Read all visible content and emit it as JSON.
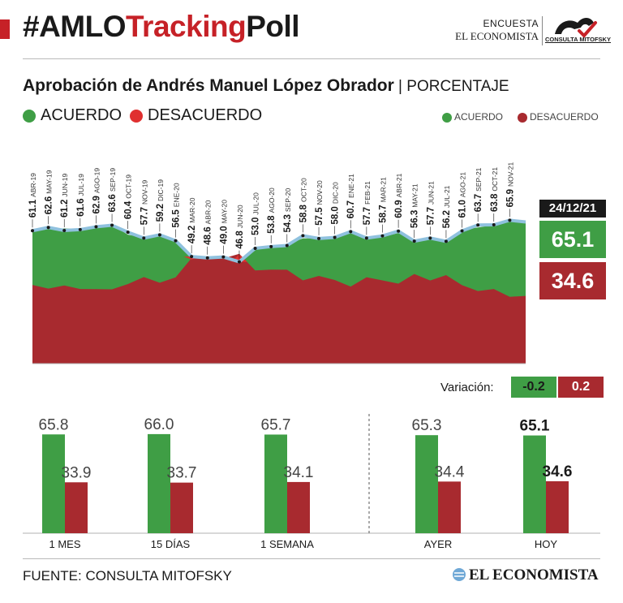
{
  "header": {
    "title_part1": "#AMLO",
    "title_part2": "Tracking",
    "title_part3": "Poll",
    "encuesta": "ENCUESTA",
    "publisher": "EL ECONOMISTA",
    "partner_logo_text": "CONSULTA MITOFSKY"
  },
  "subtitle": {
    "main": "Aprobación de Andrés Manuel López Obrador",
    "unit": "PORCENTAJE"
  },
  "legend": {
    "acuerdo": "ACUERDO",
    "desacuerdo": "DESACUERDO"
  },
  "colors": {
    "acuerdo": "#3f9e45",
    "desacuerdo": "#a82a2f",
    "desacuerdo_bright": "#e03030",
    "line": "#8fc1de"
  },
  "current": {
    "date": "24/12/21",
    "acuerdo": "65.1",
    "desacuerdo": "34.6"
  },
  "variation": {
    "label": "Variación:",
    "acuerdo": "-0.2",
    "desacuerdo": "0.2"
  },
  "chart_data": [
    {
      "type": "area",
      "title": "Aprobación de Andrés Manuel López Obrador",
      "ylabel": "PORCENTAJE",
      "ylim": [
        0,
        100
      ],
      "grid": false,
      "legend": "top-right",
      "points": [
        {
          "value": 61.1,
          "label": "ABR-19"
        },
        {
          "value": 62.6,
          "label": "MAY-19"
        },
        {
          "value": 61.2,
          "label": "JUN-19"
        },
        {
          "value": 61.6,
          "label": "JUL-19"
        },
        {
          "value": 62.9,
          "label": "AGO-19"
        },
        {
          "value": 63.6,
          "label": "SEP-19"
        },
        {
          "value": 60.4,
          "label": "OCT-19"
        },
        {
          "value": 57.7,
          "label": "NOV-19"
        },
        {
          "value": 59.2,
          "label": "DIC-19"
        },
        {
          "value": 56.5,
          "label": "ENE-20"
        },
        {
          "value": 49.2,
          "label": "MAR-20"
        },
        {
          "value": 48.6,
          "label": "ABR-20"
        },
        {
          "value": 49.0,
          "label": "MAY-20"
        },
        {
          "value": 46.8,
          "label": "JUN-20"
        },
        {
          "value": 53.0,
          "label": "JUL-20"
        },
        {
          "value": 53.8,
          "label": "AGO-20"
        },
        {
          "value": 54.3,
          "label": "SEP-20"
        },
        {
          "value": 58.8,
          "label": "OCT-20"
        },
        {
          "value": 57.5,
          "label": "NOV-20"
        },
        {
          "value": 58.0,
          "label": "DIC-20"
        },
        {
          "value": 60.7,
          "label": "ENE-21"
        },
        {
          "value": 57.7,
          "label": "FEB-21"
        },
        {
          "value": 58.7,
          "label": "MAR-21"
        },
        {
          "value": 60.9,
          "label": "ABR-21"
        },
        {
          "value": 56.3,
          "label": "MAY-21"
        },
        {
          "value": 57.7,
          "label": "JUN-21"
        },
        {
          "value": 56.2,
          "label": "JUL-21"
        },
        {
          "value": 61.0,
          "label": "AGO-21"
        },
        {
          "value": 63.7,
          "label": "SEP-21"
        },
        {
          "value": 63.8,
          "label": "OCT-21"
        },
        {
          "value": 65.9,
          "label": "NOV-21"
        }
      ],
      "series": [
        {
          "name": "ACUERDO"
        },
        {
          "name": "DESACUERDO"
        }
      ],
      "current_value": 65.1
    },
    {
      "type": "bar",
      "categories": [
        "1 MES",
        "15 DÍAS",
        "1 SEMANA",
        "AYER",
        "HOY"
      ],
      "ylim": [
        0,
        100
      ],
      "series": [
        {
          "name": "ACUERDO",
          "values": [
            65.8,
            66.0,
            65.7,
            65.3,
            65.1
          ]
        },
        {
          "name": "DESACUERDO",
          "values": [
            33.9,
            33.7,
            34.1,
            34.4,
            34.6
          ]
        }
      ]
    }
  ],
  "footer": {
    "source": "FUENTE: CONSULTA MITOFSKY",
    "logo": "EL ECONOMISTA"
  }
}
